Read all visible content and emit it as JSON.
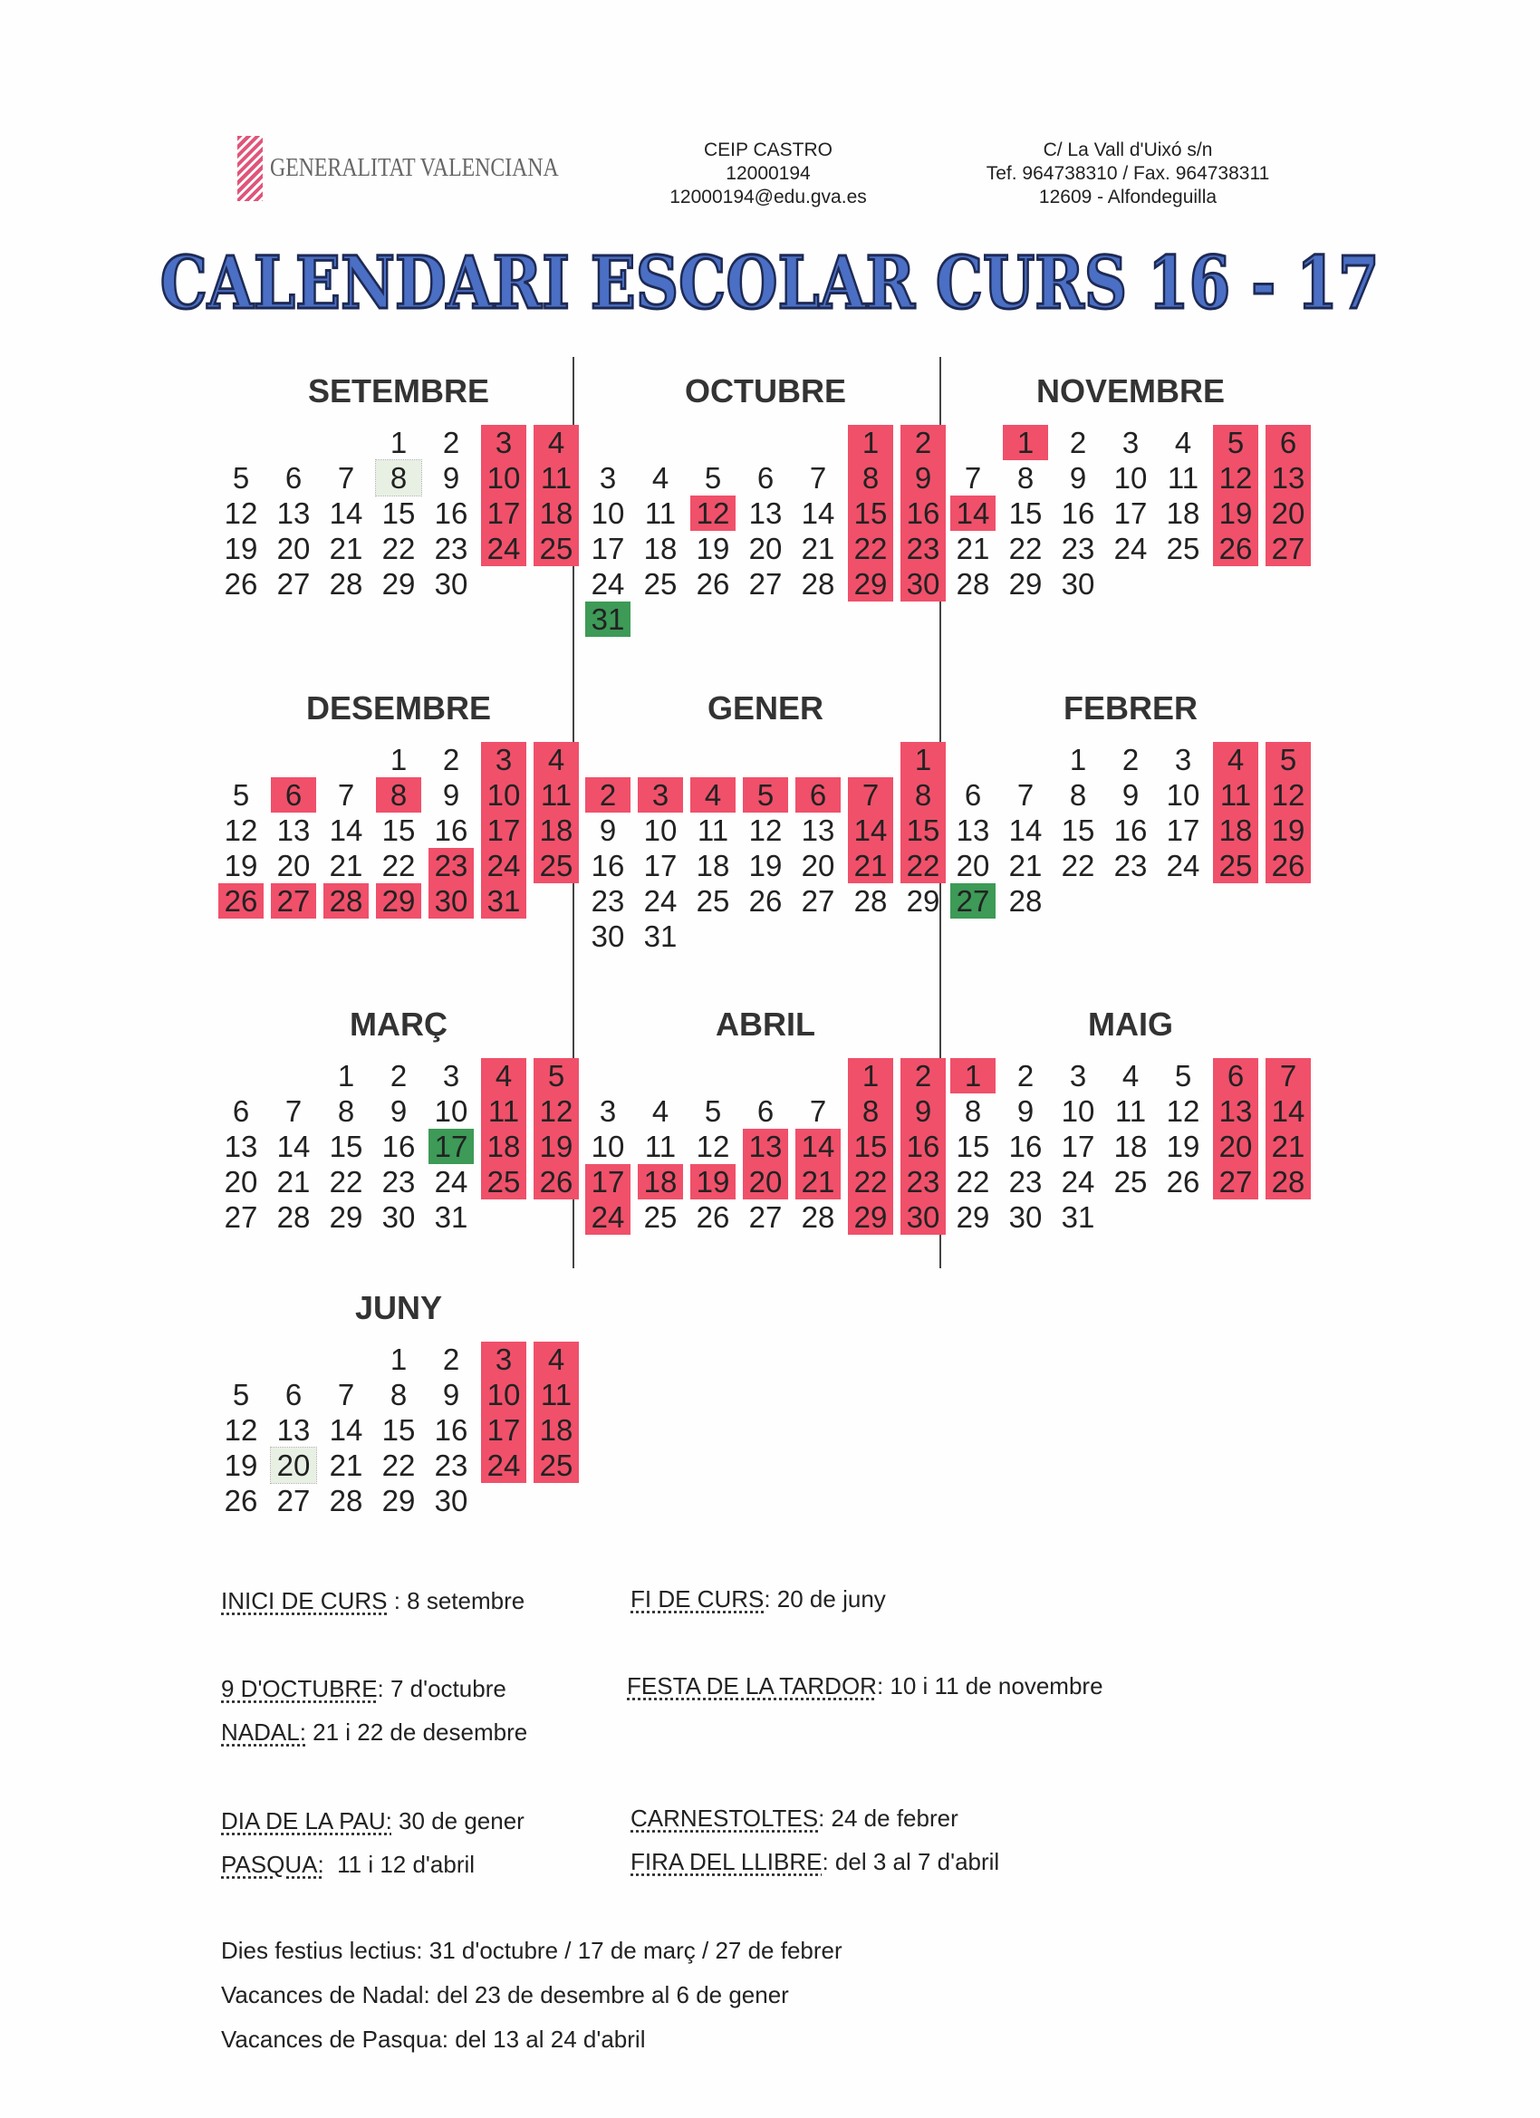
{
  "header": {
    "logo_text": "GENERALITAT VALENCIANA",
    "school": [
      "CEIP CASTRO",
      "12000194",
      "12000194@edu.gva.es"
    ],
    "address": [
      "C/ La Vall d'Uixó s/n",
      "Tef. 964738310 / Fax. 964738311",
      "12609 - Alfondeguilla"
    ],
    "title": "CALENDARI ESCOLAR CURS 16 - 17"
  },
  "colors": {
    "holiday": "#f0506a",
    "festius_lectius": "#3d9a57",
    "title": "#4a6fc4"
  },
  "months": [
    {
      "name": "SETEMBRE",
      "offset": 3,
      "days": 30,
      "red": [
        3,
        4,
        10,
        11,
        17,
        18,
        24,
        25
      ],
      "green": [],
      "outline": [
        8
      ]
    },
    {
      "name": "OCTUBRE",
      "offset": 5,
      "days": 31,
      "red": [
        1,
        2,
        8,
        9,
        12,
        15,
        16,
        22,
        23,
        29,
        30
      ],
      "green": [
        31
      ],
      "outline": []
    },
    {
      "name": "NOVEMBRE",
      "offset": 1,
      "days": 30,
      "red": [
        1,
        5,
        6,
        12,
        13,
        14,
        19,
        20,
        26,
        27
      ],
      "green": [],
      "outline": []
    },
    {
      "name": "DESEMBRE",
      "offset": 3,
      "days": 31,
      "red": [
        3,
        4,
        6,
        8,
        10,
        11,
        17,
        18,
        23,
        24,
        25,
        26,
        27,
        28,
        29,
        30,
        31
      ],
      "green": [],
      "outline": []
    },
    {
      "name": "GENER",
      "offset": 6,
      "days": 31,
      "red": [
        1,
        2,
        3,
        4,
        5,
        6,
        7,
        8,
        14,
        15,
        21,
        22
      ],
      "green": [],
      "outline": []
    },
    {
      "name": "FEBRER",
      "offset": 2,
      "days": 28,
      "red": [
        4,
        5,
        11,
        12,
        18,
        19,
        25,
        26
      ],
      "green": [
        27
      ],
      "outline": []
    },
    {
      "name": "MARÇ",
      "offset": 2,
      "days": 31,
      "red": [
        4,
        5,
        11,
        12,
        18,
        19,
        25,
        26
      ],
      "green": [
        17
      ],
      "outline": []
    },
    {
      "name": "ABRIL",
      "offset": 5,
      "days": 30,
      "red": [
        1,
        2,
        8,
        9,
        13,
        14,
        15,
        16,
        17,
        18,
        19,
        20,
        21,
        22,
        23,
        24,
        29,
        30
      ],
      "green": [],
      "outline": []
    },
    {
      "name": "MAIG",
      "offset": 0,
      "days": 31,
      "red": [
        1,
        6,
        7,
        13,
        14,
        20,
        21,
        27,
        28
      ],
      "green": [],
      "outline": []
    },
    {
      "name": "JUNY",
      "offset": 3,
      "days": 30,
      "red": [
        3,
        4,
        10,
        11,
        17,
        18,
        24,
        25
      ],
      "green": [],
      "outline": [
        20
      ]
    }
  ],
  "notes": [
    {
      "label": "INICI DE CURS",
      "text": " : 8 setembre"
    },
    {
      "label": "FI DE CURS",
      "text": ": 20 de juny"
    },
    {
      "label": "9 D'OCTUBRE",
      "text": ": 7 d'octubre"
    },
    {
      "label": "FESTA DE LA TARDOR",
      "text": ": 10 i 11 de novembre"
    },
    {
      "label": "NADAL:",
      "text": " 21 i 22 de desembre"
    },
    {
      "label": "DIA DE LA PAU:",
      "text": " 30 de gener"
    },
    {
      "label": "CARNESTOLTES",
      "text": ": 24 de febrer"
    },
    {
      "label": "PASQUA:",
      "text": "  11 i 12 d'abril"
    },
    {
      "label": "FIRA DEL LLIBRE",
      "text": ": del 3 al 7 d'abril"
    }
  ],
  "footer": [
    "Dies festius lectius: 31 d'octubre / 17 de març / 27 de febrer",
    "Vacances de Nadal: del 23 de desembre al 6 de gener",
    "Vacances de Pasqua: del 13 al 24 d'abril"
  ]
}
